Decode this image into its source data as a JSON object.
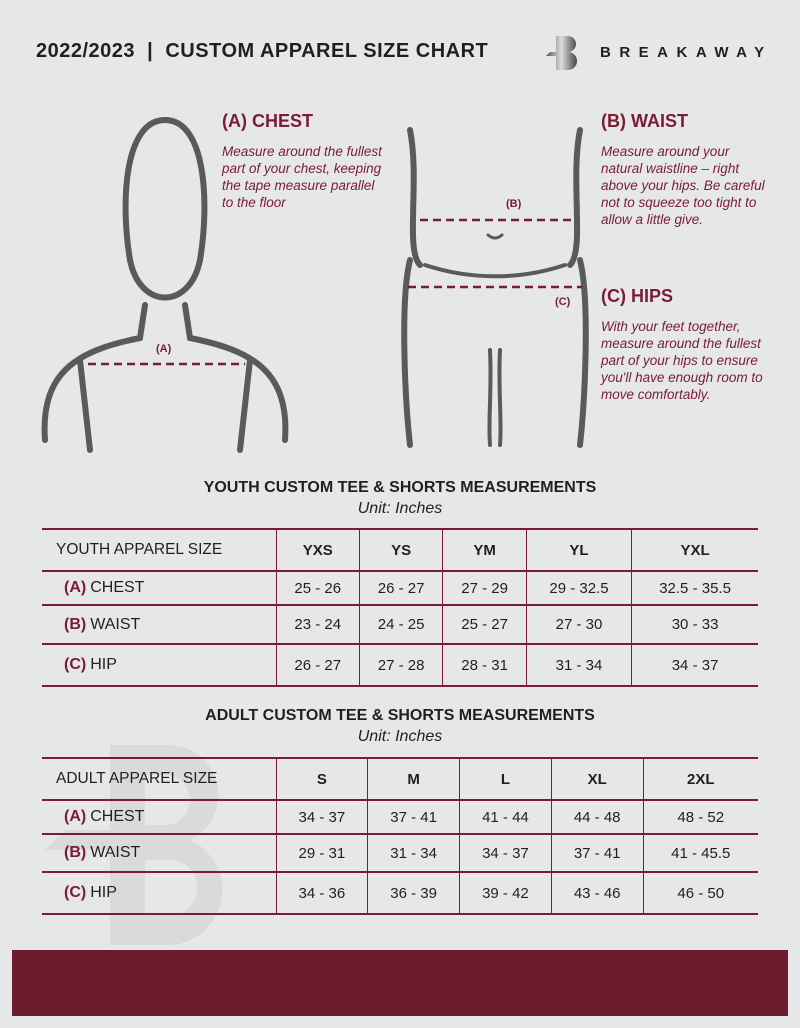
{
  "header": {
    "title": "2022/2023  |  CUSTOM APPAREL SIZE CHART",
    "brand": "BREAKAWAY",
    "logo": "B-logo"
  },
  "guide": {
    "chest": {
      "title": "(A) CHEST",
      "text": "Measure around the fullest part of your chest, keeping the tape measure parallel to the floor",
      "marker": "(A)"
    },
    "waist": {
      "title": "(B) WAIST",
      "text": "Measure around your natural waistline – right above your hips. Be careful not to squeeze too tight to allow a little give.",
      "marker": "(B)"
    },
    "hips": {
      "title": "(C) HIPS",
      "text": "With your feet together, measure around the fullest part of your hips to ensure you'll have enough room to move comfortably.",
      "marker": "(C)"
    }
  },
  "youth": {
    "title": "YOUTH CUSTOM TEE & SHORTS MEASUREMENTS",
    "unit": "Unit: Inches",
    "header": "YOUTH APPAREL SIZE",
    "sizes": [
      "YXS",
      "YS",
      "YM",
      "YL",
      "YXL"
    ],
    "rows": [
      {
        "code": "(A)",
        "name": "CHEST",
        "values": [
          "25 - 26",
          "26 - 27",
          "27 - 29",
          "29 - 32.5",
          "32.5 - 35.5"
        ]
      },
      {
        "code": "(B)",
        "name": "WAIST",
        "values": [
          "23 - 24",
          "24 - 25",
          "25 - 27",
          "27 - 30",
          "30 - 33"
        ]
      },
      {
        "code": "(C)",
        "name": "HIP",
        "values": [
          "26 - 27",
          "27 - 28",
          "28 - 31",
          "31 - 34",
          "34 - 37"
        ]
      }
    ]
  },
  "adult": {
    "title": "ADULT CUSTOM TEE & SHORTS MEASUREMENTS",
    "unit": "Unit: Inches",
    "header": "ADULT APPAREL SIZE",
    "sizes": [
      "S",
      "M",
      "L",
      "XL",
      "2XL"
    ],
    "rows": [
      {
        "code": "(A)",
        "name": "CHEST",
        "values": [
          "34 - 37",
          "37 - 41",
          "41 - 44",
          "44 - 48",
          "48 - 52"
        ]
      },
      {
        "code": "(B)",
        "name": "WAIST",
        "values": [
          "29 - 31",
          "31 - 34",
          "34 - 37",
          "37 - 41",
          "41 - 45.5"
        ]
      },
      {
        "code": "(C)",
        "name": "HIP",
        "values": [
          "34 - 36",
          "36 - 39",
          "39 - 42",
          "43 - 46",
          "46 - 50"
        ]
      }
    ]
  },
  "colors": {
    "accent": "#7a1c33",
    "footer": "#6e1a2e",
    "background": "#e6e7e9"
  }
}
